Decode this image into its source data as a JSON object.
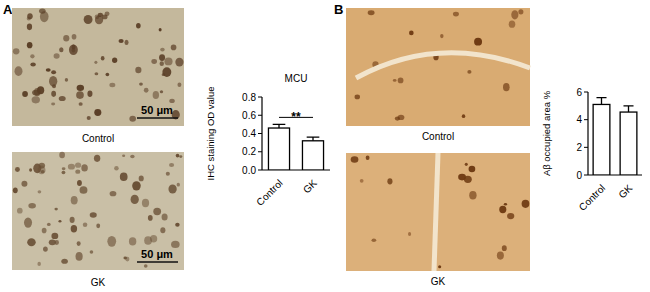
{
  "panels": [
    {
      "label": "A",
      "images": [
        {
          "caption": "Control",
          "scale_bar": "50 μm"
        },
        {
          "caption": "GK",
          "scale_bar": "50 μm"
        }
      ]
    },
    {
      "label": "B",
      "images": [
        {
          "caption": "Control"
        },
        {
          "caption": "GK"
        }
      ]
    }
  ],
  "chart_data": [
    {
      "type": "bar",
      "title": "MCU",
      "y_label": "IHC staining OD value",
      "categories": [
        "Control",
        "GK"
      ],
      "values": [
        0.46,
        0.32
      ],
      "errors": [
        0.04,
        0.04
      ],
      "color": "#ffffff",
      "ylim": [
        0,
        0.8
      ],
      "yticks": [
        {
          "value": 0,
          "label": "0.0"
        },
        0.2,
        0.4,
        0.6,
        0.8
      ],
      "annotations": [
        "**"
      ]
    },
    {
      "type": "bar",
      "y_label": "Aβ occupied area %",
      "categories": [
        "Control",
        "GK"
      ],
      "values": [
        5.1,
        4.55
      ],
      "errors": [
        0.5,
        0.45
      ],
      "color": "#ffffff",
      "ylim": [
        0,
        6
      ],
      "yticks": [
        0,
        2,
        4,
        6
      ]
    }
  ]
}
